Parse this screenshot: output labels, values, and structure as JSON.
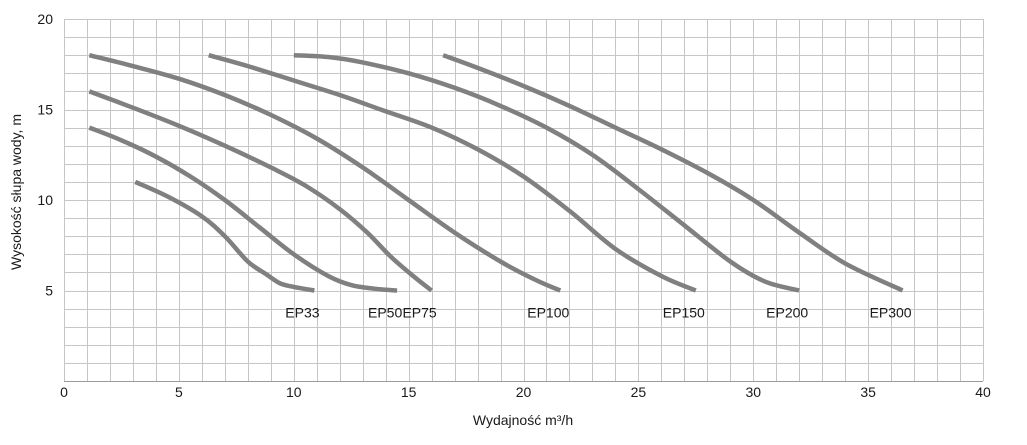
{
  "chart_data": {
    "type": "line",
    "title": "",
    "xlabel": "Wydajność m³/h",
    "ylabel": "Wysokość słupa wody, m",
    "xlim": [
      0,
      40
    ],
    "ylim": [
      0,
      20
    ],
    "x_ticks": [
      0,
      5,
      10,
      15,
      20,
      25,
      30,
      35,
      40
    ],
    "y_ticks": [
      5,
      10,
      15,
      20
    ],
    "grid": true,
    "minor_grid_x": 1,
    "minor_grid_y": 1,
    "legend": "none",
    "line_color": "#808080",
    "grid_color": "#c6c6c6",
    "series": [
      {
        "name": "EP33",
        "x": [
          3.1,
          4.5,
          6.0,
          7.0,
          8.0,
          8.8,
          9.4,
          10.0,
          10.9
        ],
        "y": [
          11.0,
          10.2,
          9.1,
          8.0,
          6.6,
          5.9,
          5.4,
          5.2,
          5.0
        ]
      },
      {
        "name": "EP50",
        "x": [
          1.1,
          2.5,
          4.0,
          5.5,
          7.0,
          8.5,
          10.0,
          11.5,
          12.5,
          13.5,
          14.5
        ],
        "y": [
          14.0,
          13.3,
          12.4,
          11.3,
          10.0,
          8.5,
          7.0,
          5.8,
          5.3,
          5.1,
          5.0
        ]
      },
      {
        "name": "EP75",
        "x": [
          1.1,
          3.0,
          5.0,
          7.0,
          9.0,
          10.5,
          12.0,
          13.2,
          14.2,
          15.2,
          16.0
        ],
        "y": [
          16.0,
          15.1,
          14.1,
          13.0,
          11.8,
          10.8,
          9.5,
          8.2,
          6.9,
          5.8,
          5.0
        ]
      },
      {
        "name": "EP100",
        "x": [
          1.1,
          3.0,
          5.0,
          7.0,
          9.0,
          11.0,
          13.0,
          15.0,
          17.0,
          19.0,
          20.5,
          21.6
        ],
        "y": [
          18.0,
          17.4,
          16.7,
          15.8,
          14.7,
          13.4,
          11.8,
          10.0,
          8.2,
          6.6,
          5.6,
          5.0
        ]
      },
      {
        "name": "EP150",
        "x": [
          6.3,
          8.0,
          10.0,
          12.0,
          14.0,
          16.0,
          18.0,
          20.0,
          22.0,
          24.0,
          26.0,
          27.5
        ],
        "y": [
          18.0,
          17.4,
          16.6,
          15.8,
          14.9,
          14.0,
          12.8,
          11.3,
          9.4,
          7.3,
          5.8,
          5.0
        ]
      },
      {
        "name": "EP200",
        "x": [
          10.0,
          11.5,
          13.0,
          15.0,
          17.0,
          19.0,
          21.0,
          23.0,
          25.0,
          27.0,
          29.0,
          30.5,
          32.0
        ],
        "y": [
          18.0,
          17.9,
          17.6,
          17.0,
          16.2,
          15.2,
          14.0,
          12.5,
          10.6,
          8.6,
          6.6,
          5.5,
          5.0
        ]
      },
      {
        "name": "EP300",
        "x": [
          16.5,
          18.0,
          20.0,
          22.0,
          24.0,
          26.0,
          28.0,
          30.0,
          32.0,
          34.0,
          36.5
        ],
        "y": [
          18.0,
          17.3,
          16.3,
          15.2,
          14.0,
          12.8,
          11.5,
          10.0,
          8.2,
          6.5,
          5.0
        ]
      }
    ],
    "curve_labels": [
      "EP33",
      "EP50",
      "EP75",
      "EP100",
      "EP150",
      "EP200",
      "EP300"
    ]
  }
}
